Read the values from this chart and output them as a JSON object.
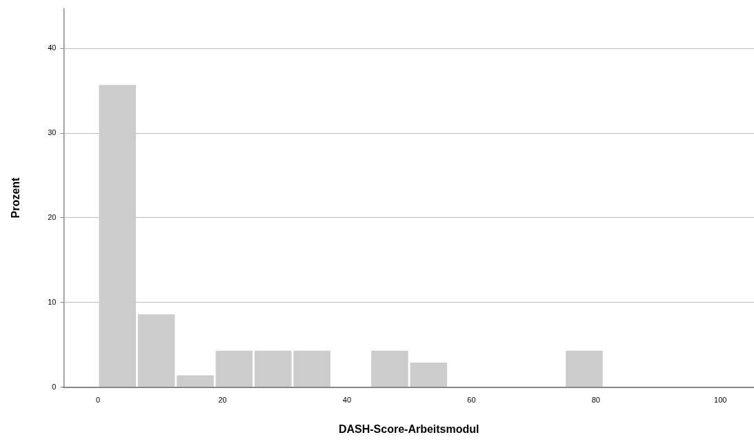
{
  "chart_data": {
    "type": "histogram",
    "xlabel": "DASH-Score-Arbeitsmodul",
    "ylabel": "Prozent",
    "bins": [
      0,
      6.25,
      12.5,
      18.75,
      25,
      31.25,
      37.5,
      43.75,
      50,
      56.25,
      62.5,
      68.75,
      75,
      81.25
    ],
    "values": [
      35.7,
      8.6,
      1.4,
      4.3,
      4.3,
      4.3,
      0,
      4.3,
      2.9,
      0,
      0,
      0,
      4.3
    ],
    "color": "#cccccc",
    "xlim": [
      -5.5,
      105.4
    ],
    "xticks": [
      0,
      20,
      40,
      60,
      80,
      100
    ],
    "ylim": [
      0,
      44.7
    ],
    "yticks": [
      0,
      10,
      20,
      30,
      40
    ],
    "grid": "y"
  }
}
